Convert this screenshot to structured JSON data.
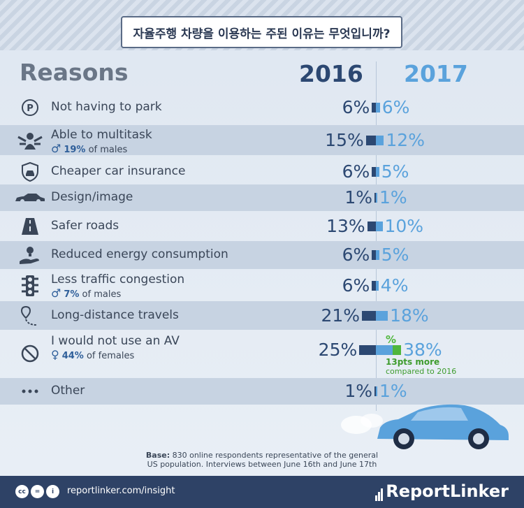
{
  "title": "자율주행 차량을 이용하는 주된 이유는 무엇입니까?",
  "headers": {
    "reasons": "Reasons",
    "y2016": "2016",
    "y2017": "2017"
  },
  "footnote": {
    "base_label": "Base:",
    "line1": "830 online respondents representative of the general",
    "line2": "US population. Interviews between June 16th and June 17th"
  },
  "footer": {
    "site": "reportlinker.com/insight",
    "brand": "ReportLinker"
  },
  "highlight": {
    "pct": "%",
    "line1": "13pts more",
    "line2": "compared to 2016"
  },
  "colors": {
    "y2016": "#2c4872",
    "y2017": "#5aa2dc",
    "highlight": "#4fb63c",
    "footer": "#2e4266"
  },
  "chart_data": {
    "type": "bar",
    "title": "자율주행 차량을 이용하는 주된 이유는 무엇입니까?",
    "categories": [
      "Not having to park",
      "Able to multitask",
      "Cheaper car insurance",
      "Design/image",
      "Safer roads",
      "Reduced energy consumption",
      "Less traffic congestion",
      "Long-distance travels",
      "I would not use an AV",
      "Other"
    ],
    "series": [
      {
        "name": "2016",
        "values": [
          6,
          15,
          6,
          1,
          13,
          6,
          6,
          21,
          25,
          1
        ]
      },
      {
        "name": "2017",
        "values": [
          6,
          12,
          5,
          1,
          10,
          5,
          4,
          18,
          38,
          1
        ]
      }
    ],
    "labels_2016": [
      "6%",
      "15%",
      "6%",
      "1%",
      "13%",
      "6%",
      "6%",
      "21%",
      "25%",
      "1%"
    ],
    "labels_2017": [
      "6%",
      "12%",
      "5%",
      "1%",
      "10%",
      "5%",
      "4%",
      "18%",
      "38%",
      "1%"
    ],
    "subnotes": [
      null,
      {
        "symbol": "♂",
        "pct": "19%",
        "rest": "of males"
      },
      null,
      null,
      null,
      null,
      {
        "symbol": "♂",
        "pct": "7%",
        "rest": "of males"
      },
      null,
      {
        "symbol": "♀",
        "pct": "44%",
        "rest": "of females"
      },
      null
    ],
    "icons": [
      "parking-icon",
      "multitask-icon",
      "insurance-shield-icon",
      "car-icon",
      "road-icon",
      "energy-hand-icon",
      "traffic-light-icon",
      "route-pin-icon",
      "no-sign-icon",
      "ellipsis-icon"
    ]
  }
}
